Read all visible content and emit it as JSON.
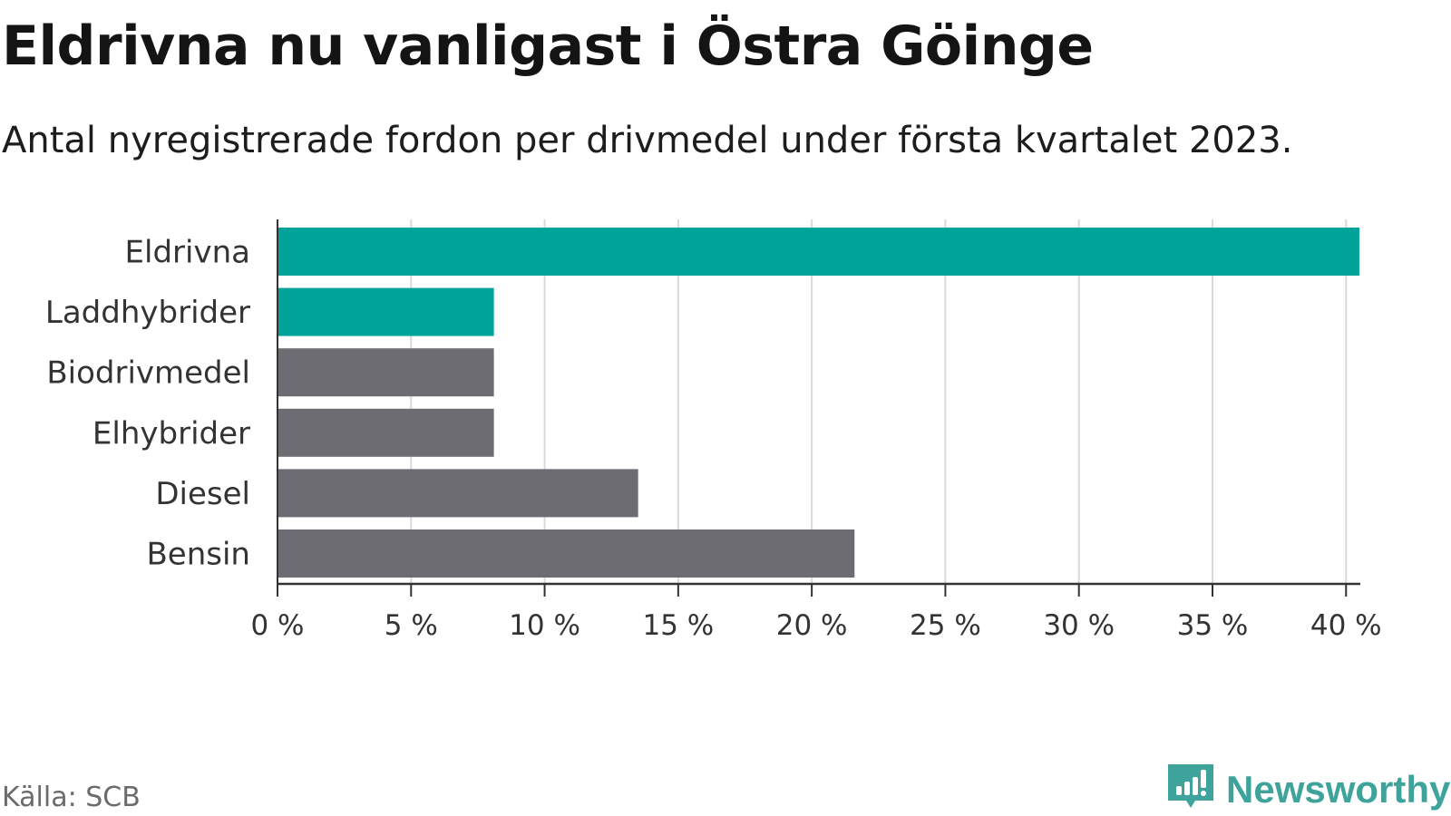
{
  "title": "Eldrivna nu vanligast i Östra Göinge",
  "subtitle": "Antal nyregistrerade fordon per drivmedel under första kvartalet 2023.",
  "source": "Källa: SCB",
  "brand": {
    "name": "Newsworthy",
    "icon": "newsworthy-logo-icon"
  },
  "colors": {
    "highlight": "#00a39a",
    "default": "#6c6c72",
    "grid": "#d9d9d9",
    "axis": "#333333",
    "brand": "#3ea39a"
  },
  "chart_data": {
    "type": "bar",
    "orientation": "horizontal",
    "categories": [
      "Eldrivna",
      "Laddhybrider",
      "Biodrivmedel",
      "Elhybrider",
      "Diesel",
      "Bensin"
    ],
    "values": [
      40.5,
      8.1,
      8.1,
      8.1,
      13.5,
      21.6
    ],
    "highlighted": [
      "Eldrivna",
      "Laddhybrider"
    ],
    "xlim": [
      0,
      40.5
    ],
    "ticks": [
      0,
      5,
      10,
      15,
      20,
      25,
      30,
      35,
      40
    ],
    "tick_labels": [
      "0 %",
      "5 %",
      "10 %",
      "15 %",
      "20 %",
      "25 %",
      "30 %",
      "35 %",
      "40 %"
    ],
    "grid": true,
    "legend": "none"
  }
}
